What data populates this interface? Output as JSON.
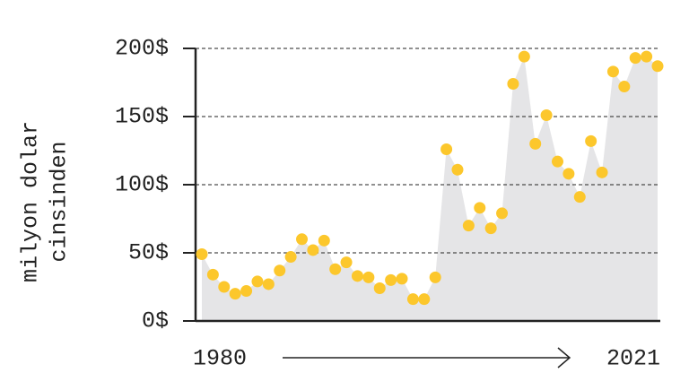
{
  "chart_data": {
    "type": "area",
    "ylabel_lines": [
      "milyon dolar",
      "cinsinden"
    ],
    "x": [
      1980,
      1981,
      1982,
      1983,
      1984,
      1985,
      1986,
      1987,
      1988,
      1989,
      1990,
      1991,
      1992,
      1993,
      1994,
      1995,
      1996,
      1997,
      1998,
      1999,
      2000,
      2001,
      2002,
      2003,
      2004,
      2005,
      2006,
      2007,
      2008,
      2009,
      2010,
      2011,
      2012,
      2013,
      2014,
      2015,
      2016,
      2017,
      2018,
      2019,
      2020,
      2021
    ],
    "values": [
      49,
      34,
      25,
      20,
      22,
      29,
      27,
      37,
      47,
      60,
      52,
      59,
      38,
      43,
      33,
      32,
      24,
      30,
      31,
      16,
      16,
      32,
      126,
      111,
      70,
      83,
      68,
      79,
      174,
      194,
      130,
      151,
      117,
      108,
      91,
      132,
      109,
      183,
      172,
      193,
      194,
      187
    ],
    "color": "#fcc72c",
    "area_color": "#e5e5e7",
    "xlim": [
      1980,
      2021
    ],
    "xticks": [
      1980,
      2021
    ],
    "ylim": [
      0,
      200
    ],
    "yticks": [
      {
        "value": 0,
        "label": "0$"
      },
      {
        "value": 50,
        "label": "50$"
      },
      {
        "value": 100,
        "label": "100$"
      },
      {
        "value": 150,
        "label": "150$"
      },
      {
        "value": 200,
        "label": "200$"
      }
    ],
    "grid": true
  }
}
